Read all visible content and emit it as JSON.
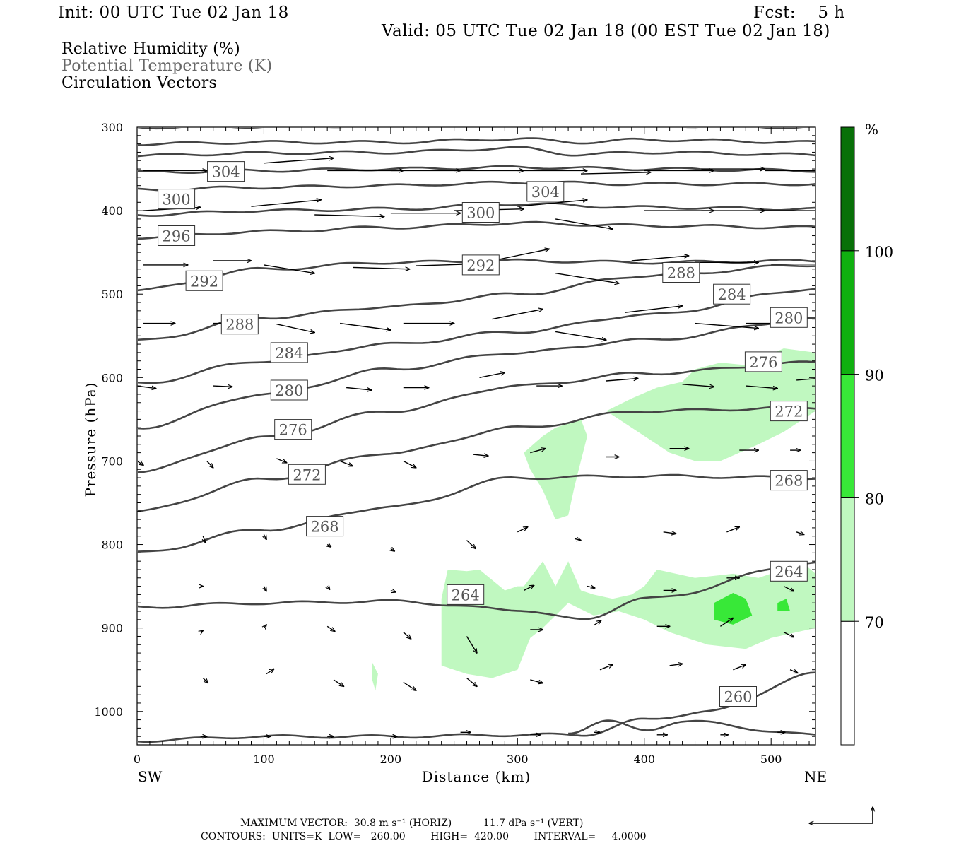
{
  "header": {
    "init": "Init: 00 UTC Tue 02 Jan 18",
    "fcst": "Fcst:    5 h",
    "valid": "Valid: 05 UTC Tue 02 Jan 18 (00 EST Tue 02 Jan 18)"
  },
  "legend": {
    "line1": "Relative Humidity (%)",
    "line2": "Potential Temperature (K)",
    "line3": "Circulation Vectors"
  },
  "axes": {
    "ylabel": "Pressure (hPa)",
    "xlabel": "Distance (km)",
    "left_end": "SW",
    "right_end": "NE"
  },
  "colorbar": {
    "unit": "%",
    "levels": [
      "70",
      "80",
      "90",
      "100"
    ],
    "colors": [
      "#ffffff",
      "#c0f8c0",
      "#38e838",
      "#10b010",
      "#087008"
    ]
  },
  "footer": {
    "line1": "MAXIMUM VECTOR:  30.8 m s⁻¹ (HORIZ)          11.7 dPa s⁻¹ (VERT)",
    "line2": "CONTOURS:  UNITS=K  LOW=   260.00        HIGH=  420.00        INTERVAL=     4.0000"
  },
  "chart_data": {
    "type": "contour",
    "x_range": [
      0,
      535
    ],
    "y_range_hpa": [
      300,
      1040
    ],
    "x_ticks": [
      0,
      100,
      200,
      300,
      400,
      500
    ],
    "y_ticks": [
      300,
      400,
      500,
      600,
      700,
      800,
      900,
      1000
    ],
    "theta_labels": [
      {
        "text": "304",
        "x": 70,
        "p": 353
      },
      {
        "text": "304",
        "x": 322,
        "p": 377
      },
      {
        "text": "300",
        "x": 31,
        "p": 386
      },
      {
        "text": "300",
        "x": 271,
        "p": 402
      },
      {
        "text": "296",
        "x": 31,
        "p": 430
      },
      {
        "text": "292",
        "x": 53,
        "p": 484
      },
      {
        "text": "292",
        "x": 271,
        "p": 465
      },
      {
        "text": "288",
        "x": 81,
        "p": 536
      },
      {
        "text": "288",
        "x": 429,
        "p": 474
      },
      {
        "text": "284",
        "x": 120,
        "p": 570
      },
      {
        "text": "284",
        "x": 469,
        "p": 500
      },
      {
        "text": "280",
        "x": 120,
        "p": 615
      },
      {
        "text": "280",
        "x": 514,
        "p": 528
      },
      {
        "text": "276",
        "x": 123,
        "p": 662
      },
      {
        "text": "276",
        "x": 494,
        "p": 581
      },
      {
        "text": "272",
        "x": 134,
        "p": 716
      },
      {
        "text": "272",
        "x": 514,
        "p": 640
      },
      {
        "text": "268",
        "x": 148,
        "p": 778
      },
      {
        "text": "268",
        "x": 514,
        "p": 723
      },
      {
        "text": "264",
        "x": 259,
        "p": 860
      },
      {
        "text": "264",
        "x": 514,
        "p": 832
      },
      {
        "text": "260",
        "x": 474,
        "p": 982
      }
    ],
    "theta_lines": [
      [
        [
          0,
          300
        ],
        [
          100,
          299
        ],
        [
          200,
          298
        ],
        [
          300,
          296
        ],
        [
          400,
          298
        ],
        [
          535,
          300
        ]
      ],
      [
        [
          0,
          320
        ],
        [
          100,
          318
        ],
        [
          200,
          318
        ],
        [
          300,
          314
        ],
        [
          350,
          318
        ],
        [
          400,
          315
        ],
        [
          535,
          318
        ]
      ],
      [
        [
          0,
          334
        ],
        [
          100,
          331
        ],
        [
          200,
          330
        ],
        [
          300,
          325
        ],
        [
          350,
          333
        ],
        [
          400,
          330
        ],
        [
          535,
          333
        ]
      ],
      [
        [
          0,
          354
        ],
        [
          100,
          352
        ],
        [
          200,
          350
        ],
        [
          300,
          348
        ],
        [
          400,
          350
        ],
        [
          535,
          352
        ]
      ],
      [
        [
          0,
          375
        ],
        [
          100,
          372
        ],
        [
          200,
          370
        ],
        [
          250,
          368
        ],
        [
          300,
          366
        ],
        [
          400,
          368
        ],
        [
          535,
          368
        ]
      ],
      [
        [
          0,
          405
        ],
        [
          100,
          400
        ],
        [
          200,
          398
        ],
        [
          300,
          392
        ],
        [
          400,
          396
        ],
        [
          535,
          398
        ]
      ],
      [
        [
          0,
          432
        ],
        [
          100,
          425
        ],
        [
          200,
          420
        ],
        [
          300,
          415
        ],
        [
          400,
          418
        ],
        [
          535,
          420
        ]
      ],
      [
        [
          0,
          495
        ],
        [
          100,
          470
        ],
        [
          200,
          462
        ],
        [
          300,
          460
        ],
        [
          400,
          462
        ],
        [
          535,
          460
        ]
      ],
      [
        [
          0,
          556
        ],
        [
          100,
          528
        ],
        [
          200,
          515
        ],
        [
          300,
          500
        ],
        [
          400,
          478
        ],
        [
          535,
          465
        ]
      ],
      [
        [
          0,
          607
        ],
        [
          100,
          580
        ],
        [
          200,
          560
        ],
        [
          300,
          545
        ],
        [
          400,
          525
        ],
        [
          535,
          494
        ]
      ],
      [
        [
          0,
          660
        ],
        [
          100,
          620
        ],
        [
          200,
          590
        ],
        [
          300,
          570
        ],
        [
          400,
          555
        ],
        [
          535,
          530
        ]
      ],
      [
        [
          0,
          712
        ],
        [
          100,
          672
        ],
        [
          200,
          640
        ],
        [
          300,
          610
        ],
        [
          400,
          595
        ],
        [
          535,
          582
        ]
      ],
      [
        [
          0,
          760
        ],
        [
          100,
          722
        ],
        [
          200,
          690
        ],
        [
          300,
          660
        ],
        [
          400,
          640
        ],
        [
          535,
          636
        ]
      ],
      [
        [
          0,
          810
        ],
        [
          100,
          782
        ],
        [
          200,
          755
        ],
        [
          300,
          720
        ],
        [
          400,
          718
        ],
        [
          535,
          720
        ]
      ],
      [
        [
          0,
          875
        ],
        [
          100,
          870
        ],
        [
          200,
          868
        ],
        [
          300,
          878
        ],
        [
          350,
          890
        ],
        [
          400,
          865
        ],
        [
          535,
          822
        ]
      ],
      [
        [
          0,
          1035
        ],
        [
          100,
          1030
        ],
        [
          200,
          1030
        ],
        [
          300,
          1028
        ],
        [
          350,
          1028
        ],
        [
          400,
          1010
        ],
        [
          450,
          1000
        ],
        [
          535,
          955
        ]
      ],
      [
        [
          340,
          1025
        ],
        [
          370,
          1012
        ],
        [
          400,
          1022
        ],
        [
          430,
          1012
        ],
        [
          535,
          1028
        ]
      ]
    ],
    "rh_70_regions": [
      [
        [
          240,
          865
        ],
        [
          245,
          830
        ],
        [
          260,
          832
        ],
        [
          270,
          830
        ],
        [
          290,
          855
        ],
        [
          300,
          850
        ],
        [
          305,
          850
        ],
        [
          320,
          820
        ],
        [
          330,
          850
        ],
        [
          340,
          820
        ],
        [
          350,
          855
        ],
        [
          360,
          860
        ],
        [
          375,
          865
        ],
        [
          390,
          860
        ],
        [
          400,
          850
        ],
        [
          410,
          830
        ],
        [
          440,
          840
        ],
        [
          470,
          835
        ],
        [
          490,
          840
        ],
        [
          525,
          822
        ],
        [
          535,
          835
        ],
        [
          535,
          900
        ],
        [
          500,
          912
        ],
        [
          480,
          925
        ],
        [
          450,
          920
        ],
        [
          420,
          905
        ],
        [
          400,
          890
        ],
        [
          380,
          880
        ],
        [
          360,
          885
        ],
        [
          340,
          870
        ],
        [
          320,
          900
        ],
        [
          310,
          912
        ],
        [
          300,
          950
        ],
        [
          280,
          960
        ],
        [
          260,
          955
        ],
        [
          240,
          945
        ]
      ],
      [
        [
          370,
          640
        ],
        [
          390,
          625
        ],
        [
          410,
          612
        ],
        [
          430,
          605
        ],
        [
          440,
          590
        ],
        [
          460,
          582
        ],
        [
          480,
          585
        ],
        [
          510,
          565
        ],
        [
          535,
          570
        ],
        [
          535,
          640
        ],
        [
          510,
          665
        ],
        [
          490,
          680
        ],
        [
          460,
          700
        ],
        [
          440,
          700
        ],
        [
          420,
          690
        ],
        [
          410,
          680
        ],
        [
          400,
          670
        ],
        [
          380,
          650
        ]
      ],
      [
        [
          305,
          690
        ],
        [
          320,
          670
        ],
        [
          330,
          660
        ],
        [
          350,
          650
        ],
        [
          355,
          670
        ],
        [
          350,
          700
        ],
        [
          345,
          730
        ],
        [
          340,
          765
        ],
        [
          330,
          770
        ],
        [
          320,
          735
        ],
        [
          310,
          710
        ]
      ],
      [
        [
          185,
          940
        ],
        [
          190,
          955
        ],
        [
          188,
          975
        ],
        [
          185,
          960
        ]
      ]
    ],
    "rh_90_regions": [
      [
        [
          455,
          870
        ],
        [
          470,
          858
        ],
        [
          480,
          865
        ],
        [
          485,
          885
        ],
        [
          470,
          896
        ],
        [
          455,
          890
        ]
      ],
      [
        [
          505,
          870
        ],
        [
          512,
          865
        ],
        [
          515,
          880
        ],
        [
          505,
          880
        ]
      ]
    ],
    "vectors": [
      [
        5,
        352,
        50,
        0
      ],
      [
        100,
        343,
        55,
        -6
      ],
      [
        150,
        352,
        60,
        0
      ],
      [
        200,
        352,
        55,
        0
      ],
      [
        250,
        352,
        55,
        0
      ],
      [
        300,
        352,
        55,
        0
      ],
      [
        350,
        356,
        55,
        -2
      ],
      [
        400,
        352,
        55,
        0
      ],
      [
        445,
        350,
        50,
        0
      ],
      [
        495,
        352,
        50,
        0
      ],
      [
        5,
        400,
        45,
        -4
      ],
      [
        90,
        395,
        55,
        -8
      ],
      [
        140,
        405,
        55,
        2
      ],
      [
        200,
        403,
        55,
        0
      ],
      [
        250,
        400,
        55,
        -2
      ],
      [
        300,
        395,
        55,
        -8
      ],
      [
        330,
        410,
        45,
        12
      ],
      [
        400,
        400,
        55,
        0
      ],
      [
        445,
        400,
        50,
        0
      ],
      [
        495,
        400,
        50,
        0
      ],
      [
        5,
        465,
        35,
        0
      ],
      [
        60,
        460,
        30,
        0
      ],
      [
        100,
        465,
        40,
        10
      ],
      [
        170,
        468,
        45,
        2
      ],
      [
        220,
        466,
        45,
        -2
      ],
      [
        280,
        460,
        45,
        -14
      ],
      [
        330,
        475,
        50,
        12
      ],
      [
        390,
        460,
        45,
        -6
      ],
      [
        440,
        462,
        50,
        0
      ],
      [
        500,
        464,
        40,
        0
      ],
      [
        5,
        535,
        25,
        0
      ],
      [
        60,
        535,
        30,
        0
      ],
      [
        110,
        536,
        30,
        10
      ],
      [
        160,
        535,
        40,
        8
      ],
      [
        210,
        535,
        40,
        0
      ],
      [
        280,
        530,
        40,
        -12
      ],
      [
        330,
        545,
        40,
        10
      ],
      [
        385,
        522,
        45,
        -8
      ],
      [
        440,
        535,
        50,
        6
      ],
      [
        480,
        535,
        45,
        0
      ],
      [
        0,
        610,
        15,
        3
      ],
      [
        60,
        610,
        15,
        1
      ],
      [
        110,
        606,
        20,
        8
      ],
      [
        165,
        612,
        20,
        3
      ],
      [
        210,
        612,
        20,
        0
      ],
      [
        270,
        600,
        20,
        -6
      ],
      [
        315,
        610,
        20,
        0
      ],
      [
        370,
        604,
        25,
        -3
      ],
      [
        430,
        608,
        25,
        3
      ],
      [
        480,
        610,
        25,
        3
      ],
      [
        520,
        603,
        25,
        -3
      ],
      [
        0,
        700,
        5,
        5
      ],
      [
        55,
        700,
        5,
        8
      ],
      [
        110,
        697,
        8,
        5
      ],
      [
        160,
        700,
        10,
        6
      ],
      [
        210,
        700,
        10,
        8
      ],
      [
        265,
        692,
        12,
        2
      ],
      [
        310,
        690,
        12,
        -5
      ],
      [
        370,
        695,
        10,
        0
      ],
      [
        420,
        685,
        15,
        0
      ],
      [
        475,
        687,
        15,
        0
      ],
      [
        515,
        687,
        8,
        0
      ],
      [
        52,
        790,
        2,
        8
      ],
      [
        100,
        788,
        2,
        6
      ],
      [
        150,
        800,
        3,
        3
      ],
      [
        200,
        805,
        3,
        3
      ],
      [
        260,
        795,
        7,
        10
      ],
      [
        300,
        785,
        8,
        -6
      ],
      [
        345,
        793,
        5,
        2
      ],
      [
        415,
        785,
        10,
        2
      ],
      [
        465,
        785,
        10,
        -6
      ],
      [
        520,
        785,
        6,
        3
      ],
      [
        50,
        850,
        2,
        0
      ],
      [
        100,
        850,
        2,
        6
      ],
      [
        150,
        850,
        2,
        4
      ],
      [
        200,
        855,
        4,
        2
      ],
      [
        260,
        855,
        7,
        10
      ],
      [
        305,
        855,
        8,
        -6
      ],
      [
        355,
        850,
        6,
        2
      ],
      [
        415,
        855,
        10,
        0
      ],
      [
        465,
        840,
        10,
        0
      ],
      [
        510,
        850,
        8,
        6
      ],
      [
        50,
        905,
        2,
        -2
      ],
      [
        100,
        900,
        2,
        -4
      ],
      [
        150,
        898,
        6,
        6
      ],
      [
        210,
        905,
        6,
        8
      ],
      [
        260,
        910,
        8,
        20
      ],
      [
        310,
        902,
        10,
        0
      ],
      [
        360,
        897,
        6,
        -6
      ],
      [
        410,
        898,
        10,
        0
      ],
      [
        460,
        898,
        10,
        -10
      ],
      [
        510,
        905,
        8,
        6
      ],
      [
        52,
        960,
        4,
        6
      ],
      [
        102,
        955,
        6,
        -6
      ],
      [
        155,
        962,
        8,
        8
      ],
      [
        210,
        965,
        10,
        10
      ],
      [
        260,
        960,
        8,
        10
      ],
      [
        310,
        962,
        10,
        4
      ],
      [
        365,
        950,
        10,
        -6
      ],
      [
        420,
        945,
        10,
        -2
      ],
      [
        470,
        950,
        10,
        -6
      ],
      [
        515,
        950,
        6,
        4
      ],
      [
        50,
        1030,
        5,
        0
      ],
      [
        100,
        1030,
        5,
        0
      ],
      [
        150,
        1030,
        5,
        0
      ],
      [
        200,
        1030,
        5,
        0
      ],
      [
        255,
        1025,
        8,
        0
      ],
      [
        310,
        1028,
        8,
        0
      ],
      [
        360,
        1025,
        5,
        0
      ],
      [
        410,
        1028,
        8,
        0
      ],
      [
        460,
        1028,
        6,
        0
      ],
      [
        505,
        1025,
        6,
        0
      ]
    ]
  }
}
